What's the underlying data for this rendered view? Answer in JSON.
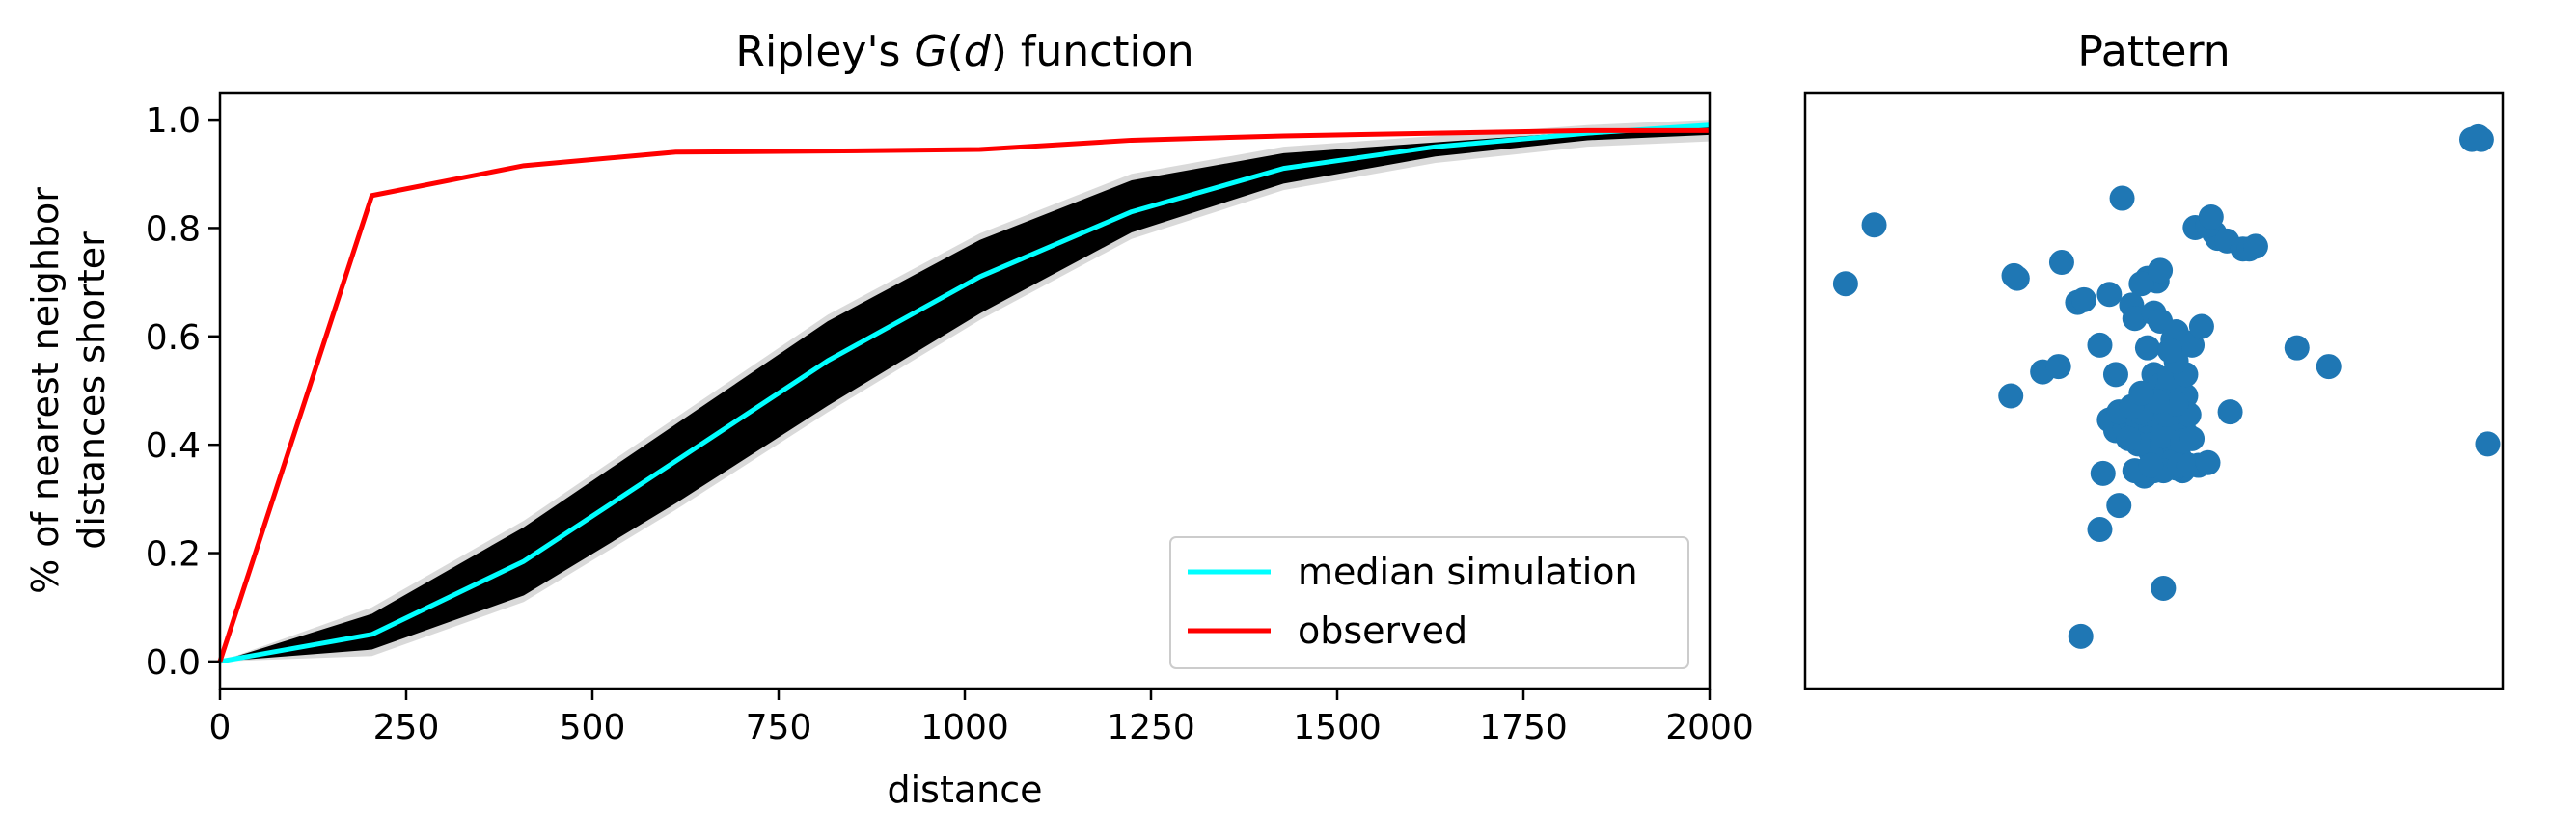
{
  "chart_data": [
    {
      "type": "line",
      "title_prefix": "Ripley's ",
      "title_var": "G",
      "title_arg": "d",
      "title_suffix": " function",
      "xlabel": "distance",
      "ylabel_lines": [
        "% of nearest neighbor",
        "distances shorter"
      ],
      "xlim": [
        0,
        2000
      ],
      "ylim": [
        -0.05,
        1.05
      ],
      "xticks": [
        0,
        250,
        500,
        750,
        1000,
        1250,
        1500,
        1750,
        2000
      ],
      "xtick_labels": [
        "0",
        "250",
        "500",
        "750",
        "1000",
        "1250",
        "1500",
        "1750",
        "2000"
      ],
      "yticks": [
        0.0,
        0.2,
        0.4,
        0.6,
        0.8,
        1.0
      ],
      "ytick_labels": [
        "0.0",
        "0.2",
        "0.4",
        "0.6",
        "0.8",
        "1.0"
      ],
      "x": [
        0,
        204,
        408,
        612,
        816,
        1020,
        1224,
        1428,
        1632,
        1836,
        2000
      ],
      "simulation_envelope": {
        "color": "#000000",
        "lower": [
          0,
          0.01,
          0.11,
          0.28,
          0.46,
          0.63,
          0.78,
          0.87,
          0.92,
          0.95,
          0.96
        ],
        "upper": [
          0,
          0.1,
          0.26,
          0.45,
          0.64,
          0.79,
          0.9,
          0.95,
          0.97,
          0.99,
          1.0
        ]
      },
      "series": [
        {
          "name": "median simulation",
          "color": "#00ffff",
          "values": [
            0,
            0.05,
            0.185,
            0.37,
            0.555,
            0.71,
            0.83,
            0.91,
            0.95,
            0.975,
            0.99
          ]
        },
        {
          "name": "observed",
          "color": "#ff0000",
          "values": [
            0,
            0.86,
            0.915,
            0.94,
            0.942,
            0.945,
            0.962,
            0.97,
            0.975,
            0.98,
            0.98
          ]
        }
      ],
      "legend_position": "lower-right"
    },
    {
      "type": "scatter",
      "title": "Pattern",
      "color": "#1f77b4",
      "axes_visible": false,
      "xlim": [
        0,
        100
      ],
      "ylim": [
        0,
        100
      ],
      "points": [
        [
          1.5,
          70.0
        ],
        [
          6.0,
          81.0
        ],
        [
          28.0,
          71.5
        ],
        [
          28.5,
          71.0
        ],
        [
          35.5,
          74.0
        ],
        [
          27.5,
          49.0
        ],
        [
          32.5,
          53.5
        ],
        [
          35.0,
          54.5
        ],
        [
          38.0,
          66.5
        ],
        [
          39.0,
          67.0
        ],
        [
          41.5,
          58.5
        ],
        [
          44.0,
          53.0
        ],
        [
          42.0,
          34.5
        ],
        [
          38.5,
          4.0
        ],
        [
          41.5,
          24.0
        ],
        [
          44.5,
          28.5
        ],
        [
          51.5,
          13.0
        ],
        [
          48.5,
          34.0
        ],
        [
          47.0,
          35.0
        ],
        [
          57.0,
          36.0
        ],
        [
          54.5,
          35.0
        ],
        [
          45.0,
          86.0
        ],
        [
          43.0,
          68.0
        ],
        [
          46.5,
          66.0
        ],
        [
          47.0,
          63.5
        ],
        [
          50.0,
          64.5
        ],
        [
          50.5,
          70.5
        ],
        [
          49.0,
          71.0
        ],
        [
          48.0,
          70.0
        ],
        [
          51.0,
          72.5
        ],
        [
          51.0,
          63.0
        ],
        [
          53.0,
          59.5
        ],
        [
          53.5,
          61.0
        ],
        [
          55.0,
          59.0
        ],
        [
          56.0,
          58.5
        ],
        [
          57.5,
          62.0
        ],
        [
          59.5,
          79.5
        ],
        [
          60.0,
          78.5
        ],
        [
          56.5,
          80.5
        ],
        [
          58.5,
          81.0
        ],
        [
          59.0,
          82.5
        ],
        [
          61.5,
          78.0
        ],
        [
          64.0,
          76.5
        ],
        [
          65.0,
          76.5
        ],
        [
          66.0,
          77.0
        ],
        [
          62.0,
          46.0
        ],
        [
          72.5,
          58.0
        ],
        [
          77.5,
          54.5
        ],
        [
          100.0,
          97.0
        ],
        [
          101.0,
          97.5
        ],
        [
          101.5,
          97.0
        ],
        [
          102.5,
          40.0
        ],
        [
          49.0,
          58.0
        ],
        [
          50.0,
          53.0
        ],
        [
          51.0,
          51.0
        ],
        [
          52.0,
          50.0
        ],
        [
          53.0,
          49.0
        ],
        [
          54.0,
          47.0
        ],
        [
          55.0,
          49.0
        ],
        [
          52.5,
          52.5
        ],
        [
          55.0,
          53.0
        ],
        [
          53.5,
          55.5
        ],
        [
          52.5,
          57.5
        ],
        [
          43.0,
          44.5
        ],
        [
          44.0,
          42.5
        ],
        [
          45.5,
          43.0
        ],
        [
          46.5,
          44.0
        ],
        [
          47.5,
          43.5
        ],
        [
          48.5,
          44.5
        ],
        [
          49.5,
          43.0
        ],
        [
          50.5,
          44.0
        ],
        [
          51.5,
          43.5
        ],
        [
          52.5,
          42.5
        ],
        [
          53.5,
          43.5
        ],
        [
          54.5,
          44.0
        ],
        [
          55.0,
          42.0
        ],
        [
          49.0,
          41.0
        ],
        [
          50.0,
          40.0
        ],
        [
          51.0,
          39.0
        ],
        [
          52.0,
          38.5
        ],
        [
          53.0,
          39.5
        ],
        [
          54.0,
          37.5
        ],
        [
          50.5,
          37.0
        ],
        [
          52.5,
          36.5
        ],
        [
          53.5,
          35.5
        ],
        [
          50.0,
          35.0
        ],
        [
          49.5,
          38.5
        ],
        [
          47.5,
          40.0
        ],
        [
          46.0,
          41.0
        ],
        [
          51.5,
          41.5
        ],
        [
          54.5,
          40.5
        ],
        [
          55.5,
          45.5
        ],
        [
          52.0,
          45.5
        ],
        [
          48.0,
          46.0
        ],
        [
          44.5,
          46.0
        ],
        [
          53.5,
          47.5
        ],
        [
          46.5,
          47.0
        ],
        [
          50.5,
          48.0
        ],
        [
          48.0,
          49.5
        ],
        [
          56.0,
          41.0
        ],
        [
          51.5,
          35.0
        ],
        [
          54.0,
          36.0
        ],
        [
          55.5,
          36.0
        ],
        [
          58.5,
          36.5
        ],
        [
          49.5,
          36.0
        ]
      ]
    }
  ]
}
